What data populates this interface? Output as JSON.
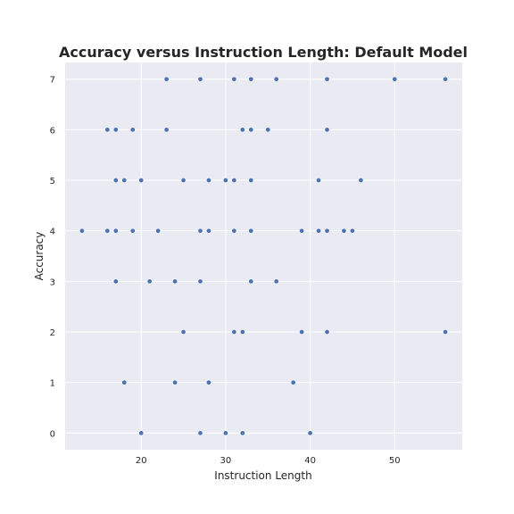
{
  "chart_data": {
    "type": "scatter",
    "title": "Accuracy versus Instruction Length: Default Model",
    "xlabel": "Instruction Length",
    "ylabel": "Accuracy",
    "xlim": [
      11,
      58
    ],
    "ylim": [
      -0.33,
      7.33
    ],
    "xticks": [
      20,
      30,
      40,
      50
    ],
    "yticks": [
      0,
      1,
      2,
      3,
      4,
      5,
      6,
      7
    ],
    "grid": true,
    "background": "#eaeaf2",
    "marker_color": "#4c72b0",
    "points": [
      {
        "x": 23,
        "y": 7
      },
      {
        "x": 27,
        "y": 7
      },
      {
        "x": 31,
        "y": 7
      },
      {
        "x": 33,
        "y": 7
      },
      {
        "x": 36,
        "y": 7
      },
      {
        "x": 42,
        "y": 7
      },
      {
        "x": 50,
        "y": 7
      },
      {
        "x": 56,
        "y": 7
      },
      {
        "x": 16,
        "y": 6
      },
      {
        "x": 17,
        "y": 6
      },
      {
        "x": 19,
        "y": 6
      },
      {
        "x": 23,
        "y": 6
      },
      {
        "x": 32,
        "y": 6
      },
      {
        "x": 33,
        "y": 6
      },
      {
        "x": 35,
        "y": 6
      },
      {
        "x": 42,
        "y": 6
      },
      {
        "x": 17,
        "y": 5
      },
      {
        "x": 18,
        "y": 5
      },
      {
        "x": 20,
        "y": 5
      },
      {
        "x": 25,
        "y": 5
      },
      {
        "x": 28,
        "y": 5
      },
      {
        "x": 30,
        "y": 5
      },
      {
        "x": 31,
        "y": 5
      },
      {
        "x": 33,
        "y": 5
      },
      {
        "x": 41,
        "y": 5
      },
      {
        "x": 46,
        "y": 5
      },
      {
        "x": 13,
        "y": 4
      },
      {
        "x": 16,
        "y": 4
      },
      {
        "x": 17,
        "y": 4
      },
      {
        "x": 19,
        "y": 4
      },
      {
        "x": 22,
        "y": 4
      },
      {
        "x": 27,
        "y": 4
      },
      {
        "x": 28,
        "y": 4
      },
      {
        "x": 31,
        "y": 4
      },
      {
        "x": 33,
        "y": 4
      },
      {
        "x": 39,
        "y": 4
      },
      {
        "x": 41,
        "y": 4
      },
      {
        "x": 42,
        "y": 4
      },
      {
        "x": 44,
        "y": 4
      },
      {
        "x": 45,
        "y": 4
      },
      {
        "x": 17,
        "y": 3
      },
      {
        "x": 21,
        "y": 3
      },
      {
        "x": 24,
        "y": 3
      },
      {
        "x": 27,
        "y": 3
      },
      {
        "x": 33,
        "y": 3
      },
      {
        "x": 36,
        "y": 3
      },
      {
        "x": 25,
        "y": 2
      },
      {
        "x": 31,
        "y": 2
      },
      {
        "x": 32,
        "y": 2
      },
      {
        "x": 39,
        "y": 2
      },
      {
        "x": 42,
        "y": 2
      },
      {
        "x": 56,
        "y": 2
      },
      {
        "x": 18,
        "y": 1
      },
      {
        "x": 24,
        "y": 1
      },
      {
        "x": 28,
        "y": 1
      },
      {
        "x": 38,
        "y": 1
      },
      {
        "x": 20,
        "y": 0
      },
      {
        "x": 27,
        "y": 0
      },
      {
        "x": 30,
        "y": 0
      },
      {
        "x": 32,
        "y": 0
      },
      {
        "x": 40,
        "y": 0
      }
    ]
  }
}
